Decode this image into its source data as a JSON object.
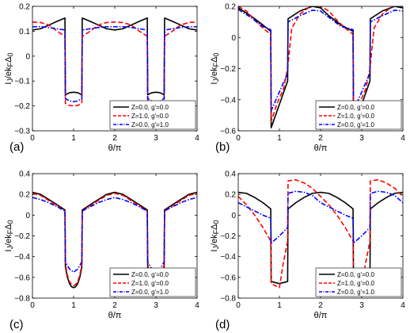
{
  "chart_data": [
    {
      "type": "line",
      "panel_label": "(a)",
      "xlabel": "θ/π",
      "ylabel": "I_J/ek_FΔ_0",
      "xlim": [
        0,
        4
      ],
      "ylim": [
        -0.3,
        0.2
      ],
      "xticks": [
        0,
        1,
        2,
        3,
        4
      ],
      "yticks": [
        -0.3,
        -0.2,
        -0.1,
        0,
        0.1,
        0.2
      ],
      "ytick_labels": [
        "−0.3",
        "−0.2",
        "−0.1",
        "0",
        "0.1",
        "0.2"
      ],
      "legend_position": "bottom-right",
      "series": [
        {
          "name": "Z=0.0, g'=0.0",
          "color": "#000000",
          "dash": "solid",
          "x": [
            0,
            0.2,
            0.4,
            0.6,
            0.79,
            0.8,
            0.9,
            1.0,
            1.1,
            1.2,
            1.21,
            1.4,
            1.6,
            1.8,
            2.0,
            2.2,
            2.4,
            2.6,
            2.79,
            2.8,
            2.9,
            3.0,
            3.1,
            3.2,
            3.21,
            3.4,
            3.6,
            3.8,
            4.0
          ],
          "y": [
            0.105,
            0.11,
            0.125,
            0.14,
            0.153,
            -0.155,
            -0.147,
            -0.145,
            -0.147,
            -0.155,
            0.153,
            0.14,
            0.125,
            0.11,
            0.105,
            0.11,
            0.125,
            0.14,
            0.153,
            -0.155,
            -0.147,
            -0.145,
            -0.147,
            -0.155,
            0.153,
            0.14,
            0.125,
            0.11,
            0.105
          ]
        },
        {
          "name": "Z=1.0, g'=0.0",
          "color": "#ff0000",
          "dash": "dashed",
          "x": [
            0,
            0.2,
            0.4,
            0.6,
            0.79,
            0.8,
            0.9,
            1.0,
            1.1,
            1.2,
            1.21,
            1.4,
            1.6,
            1.8,
            2.0,
            2.2,
            2.4,
            2.6,
            2.79,
            2.8,
            2.9,
            3.0,
            3.1,
            3.2,
            3.21,
            3.4,
            3.6,
            3.8,
            4.0
          ],
          "y": [
            0.137,
            0.135,
            0.125,
            0.1,
            0.08,
            -0.19,
            -0.198,
            -0.2,
            -0.198,
            -0.19,
            0.08,
            0.1,
            0.125,
            0.135,
            0.137,
            0.135,
            0.125,
            0.1,
            0.08,
            -0.19,
            -0.198,
            -0.2,
            -0.198,
            -0.19,
            0.08,
            0.1,
            0.125,
            0.135,
            0.137
          ]
        },
        {
          "name": "Z=0.0, g'=1.0",
          "color": "#0000ff",
          "dash": "dashdot",
          "x": [
            0,
            0.2,
            0.4,
            0.6,
            0.79,
            0.8,
            0.9,
            1.0,
            1.1,
            1.2,
            1.21,
            1.4,
            1.6,
            1.8,
            2.0,
            2.2,
            2.4,
            2.6,
            2.79,
            2.8,
            2.9,
            3.0,
            3.1,
            3.2,
            3.21,
            3.4,
            3.6,
            3.8,
            4.0
          ],
          "y": [
            0.118,
            0.118,
            0.115,
            0.11,
            0.105,
            -0.17,
            -0.18,
            -0.183,
            -0.18,
            -0.17,
            0.105,
            0.11,
            0.115,
            0.118,
            0.118,
            0.118,
            0.115,
            0.11,
            0.105,
            -0.17,
            -0.18,
            -0.183,
            -0.18,
            -0.17,
            0.105,
            0.11,
            0.115,
            0.118,
            0.118
          ]
        }
      ]
    },
    {
      "type": "line",
      "panel_label": "(b)",
      "xlabel": "θ/π",
      "ylabel": "I_J/ek_FΔ_0",
      "xlim": [
        0,
        4
      ],
      "ylim": [
        -0.6,
        0.2
      ],
      "xticks": [
        0,
        1,
        2,
        3,
        4
      ],
      "yticks": [
        -0.6,
        -0.4,
        -0.2,
        0,
        0.2
      ],
      "ytick_labels": [
        "−0.6",
        "−0.4",
        "−0.2",
        "0",
        "0.2"
      ],
      "legend_position": "bottom-right",
      "series": [
        {
          "name": "Z=0.0, g'=0.0",
          "color": "#000000",
          "dash": "solid",
          "x": [
            0,
            0.3,
            0.6,
            0.79,
            0.8,
            1.2,
            1.21,
            1.5,
            1.8,
            2.0,
            2.2,
            2.5,
            2.79,
            2.8,
            3.2,
            3.21,
            3.5,
            3.8,
            4.0
          ],
          "y": [
            0.19,
            0.14,
            0.08,
            0.04,
            -0.58,
            -0.28,
            0.12,
            0.17,
            0.2,
            0.19,
            0.14,
            0.08,
            0.04,
            -0.58,
            -0.28,
            0.12,
            0.17,
            0.2,
            0.19
          ]
        },
        {
          "name": "Z=1.0, g'=0.0",
          "color": "#ff0000",
          "dash": "dashed",
          "x": [
            0,
            0.2,
            0.4,
            0.6,
            0.79,
            0.8,
            0.95,
            1.1,
            1.2,
            1.3,
            1.5,
            1.8,
            2.0,
            2.2,
            2.4,
            2.6,
            2.79,
            2.8,
            2.95,
            3.1,
            3.2,
            3.3,
            3.5,
            3.8,
            4.0
          ],
          "y": [
            0.2,
            0.17,
            0.11,
            0.06,
            0.02,
            -0.54,
            -0.42,
            -0.33,
            -0.2,
            0.06,
            0.15,
            0.21,
            0.2,
            0.17,
            0.11,
            0.06,
            0.02,
            -0.54,
            -0.42,
            -0.33,
            -0.2,
            0.06,
            0.15,
            0.21,
            0.2
          ]
        },
        {
          "name": "Z=0.0, g'=1.0",
          "color": "#0000ff",
          "dash": "dashdot",
          "x": [
            0,
            0.3,
            0.6,
            0.79,
            0.8,
            1.2,
            1.21,
            1.5,
            1.8,
            2.0,
            2.2,
            2.5,
            2.79,
            2.8,
            3.2,
            3.21,
            3.5,
            3.8,
            4.0
          ],
          "y": [
            0.18,
            0.13,
            0.07,
            0.05,
            -0.47,
            -0.23,
            0.1,
            0.14,
            0.175,
            0.17,
            0.13,
            0.07,
            0.05,
            -0.47,
            -0.23,
            0.1,
            0.14,
            0.175,
            0.17
          ]
        }
      ]
    },
    {
      "type": "line",
      "panel_label": "(c)",
      "xlabel": "θ/π",
      "ylabel": "I_J/ek_FΔ_0",
      "xlim": [
        0,
        4
      ],
      "ylim": [
        -0.8,
        0.4
      ],
      "xticks": [
        0,
        1,
        2,
        3,
        4
      ],
      "yticks": [
        -0.8,
        -0.6,
        -0.4,
        -0.2,
        0,
        0.2,
        0.4
      ],
      "ytick_labels": [
        "−0.8",
        "−0.6",
        "−0.4",
        "−0.2",
        "0",
        "0.2",
        "0.4"
      ],
      "legend_position": "bottom-right",
      "series": [
        {
          "name": "Z=0.0, g'=0.0",
          "color": "#000000",
          "dash": "solid",
          "x": [
            0,
            0.2,
            0.4,
            0.6,
            0.79,
            0.8,
            0.85,
            0.9,
            0.95,
            1.0,
            1.05,
            1.1,
            1.15,
            1.2,
            1.21,
            1.4,
            1.6,
            1.8,
            2.0,
            2.2,
            2.4,
            2.6,
            2.79,
            2.8,
            2.85,
            2.9,
            2.95,
            3.0,
            3.05,
            3.1,
            3.15,
            3.2,
            3.21,
            3.4,
            3.6,
            3.8,
            4.0
          ],
          "y": [
            0.22,
            0.2,
            0.15,
            0.1,
            0.05,
            -0.5,
            -0.6,
            -0.66,
            -0.69,
            -0.7,
            -0.69,
            -0.66,
            -0.6,
            -0.5,
            0.05,
            0.1,
            0.15,
            0.2,
            0.22,
            0.2,
            0.15,
            0.1,
            0.05,
            -0.5,
            -0.6,
            -0.66,
            -0.69,
            -0.7,
            -0.69,
            -0.66,
            -0.6,
            -0.5,
            0.05,
            0.1,
            0.15,
            0.2,
            0.22
          ]
        },
        {
          "name": "Z=1.0, g'=0.0",
          "color": "#ff0000",
          "dash": "dashed",
          "x": [
            0,
            0.2,
            0.4,
            0.6,
            0.79,
            0.8,
            0.85,
            0.9,
            0.95,
            1.0,
            1.05,
            1.1,
            1.15,
            1.2,
            1.21,
            1.4,
            1.6,
            1.8,
            2.0,
            2.2,
            2.4,
            2.6,
            2.79,
            2.8,
            2.85,
            2.9,
            2.95,
            3.0,
            3.05,
            3.1,
            3.15,
            3.2,
            3.21,
            3.4,
            3.6,
            3.8,
            4.0
          ],
          "y": [
            0.21,
            0.19,
            0.14,
            0.09,
            0.04,
            -0.47,
            -0.58,
            -0.64,
            -0.67,
            -0.68,
            -0.67,
            -0.64,
            -0.58,
            -0.47,
            0.04,
            0.09,
            0.14,
            0.19,
            0.21,
            0.19,
            0.14,
            0.09,
            0.04,
            -0.47,
            -0.58,
            -0.64,
            -0.67,
            -0.68,
            -0.67,
            -0.64,
            -0.58,
            -0.47,
            0.04,
            0.09,
            0.14,
            0.19,
            0.21
          ]
        },
        {
          "name": "Z=0.0, g'=1.0",
          "color": "#0000ff",
          "dash": "dashdot",
          "x": [
            0,
            0.2,
            0.4,
            0.6,
            0.79,
            0.8,
            0.9,
            1.0,
            1.1,
            1.2,
            1.21,
            1.4,
            1.6,
            1.8,
            2.0,
            2.2,
            2.4,
            2.6,
            2.79,
            2.8,
            2.9,
            3.0,
            3.1,
            3.2,
            3.21,
            3.4,
            3.6,
            3.8,
            4.0
          ],
          "y": [
            0.17,
            0.15,
            0.12,
            0.08,
            0.04,
            -0.45,
            -0.52,
            -0.55,
            -0.52,
            -0.45,
            0.04,
            0.08,
            0.12,
            0.15,
            0.17,
            0.15,
            0.12,
            0.08,
            0.04,
            -0.45,
            -0.52,
            -0.55,
            -0.52,
            -0.45,
            0.04,
            0.08,
            0.12,
            0.15,
            0.17
          ]
        }
      ]
    },
    {
      "type": "line",
      "panel_label": "(d)",
      "xlabel": "θ/π",
      "ylabel": "I_J/ek_FΔ_0",
      "xlim": [
        0,
        4
      ],
      "ylim": [
        -0.8,
        0.4
      ],
      "xticks": [
        0,
        1,
        2,
        3,
        4
      ],
      "yticks": [
        -0.8,
        -0.6,
        -0.4,
        -0.2,
        0,
        0.2,
        0.4
      ],
      "ytick_labels": [
        "−0.8",
        "−0.6",
        "−0.4",
        "−0.2",
        "0",
        "0.2",
        "0.4"
      ],
      "legend_position": "bottom-right",
      "series": [
        {
          "name": "Z=0.0, g'=0.0",
          "color": "#000000",
          "dash": "solid",
          "x": [
            0,
            0.2,
            0.4,
            0.6,
            0.79,
            0.8,
            1.0,
            1.2,
            1.21,
            1.4,
            1.6,
            1.8,
            2.0,
            2.2,
            2.4,
            2.6,
            2.79,
            2.8,
            3.0,
            3.2,
            3.21,
            3.4,
            3.6,
            3.8,
            4.0
          ],
          "y": [
            0.22,
            0.21,
            0.17,
            0.12,
            0.06,
            -0.64,
            -0.66,
            -0.64,
            0.06,
            0.12,
            0.17,
            0.21,
            0.22,
            0.21,
            0.17,
            0.12,
            0.06,
            -0.64,
            -0.66,
            -0.64,
            0.06,
            0.12,
            0.17,
            0.21,
            0.22
          ]
        },
        {
          "name": "Z=1.0, g'=0.0",
          "color": "#ff0000",
          "dash": "dashed",
          "x": [
            0,
            0.2,
            0.4,
            0.6,
            0.79,
            0.8,
            0.9,
            1.0,
            1.1,
            1.2,
            1.21,
            1.4,
            1.6,
            1.8,
            2.0,
            2.2,
            2.4,
            2.6,
            2.79,
            2.8,
            2.9,
            3.0,
            3.1,
            3.2,
            3.21,
            3.4,
            3.6,
            3.8,
            4.0
          ],
          "y": [
            0.18,
            0.1,
            0.0,
            -0.12,
            -0.25,
            -0.66,
            -0.68,
            -0.7,
            -0.45,
            -0.25,
            0.33,
            0.34,
            0.31,
            0.26,
            0.18,
            0.1,
            0.0,
            -0.12,
            -0.25,
            -0.66,
            -0.68,
            -0.7,
            -0.45,
            -0.25,
            0.33,
            0.34,
            0.31,
            0.26,
            0.18
          ]
        },
        {
          "name": "Z=0.0, g'=1.0",
          "color": "#0000ff",
          "dash": "dashdot",
          "x": [
            0,
            0.2,
            0.4,
            0.6,
            0.79,
            0.8,
            1.0,
            1.2,
            1.21,
            1.4,
            1.6,
            1.8,
            2.0,
            2.2,
            2.4,
            2.6,
            2.79,
            2.8,
            3.0,
            3.2,
            3.21,
            3.4,
            3.6,
            3.8,
            4.0
          ],
          "y": [
            0.12,
            0.08,
            0.04,
            0.0,
            -0.03,
            -0.27,
            -0.2,
            -0.12,
            0.21,
            0.23,
            0.22,
            0.19,
            0.12,
            0.08,
            0.04,
            0.0,
            -0.03,
            -0.27,
            -0.2,
            -0.12,
            0.21,
            0.23,
            0.22,
            0.19,
            0.12
          ]
        }
      ]
    }
  ]
}
